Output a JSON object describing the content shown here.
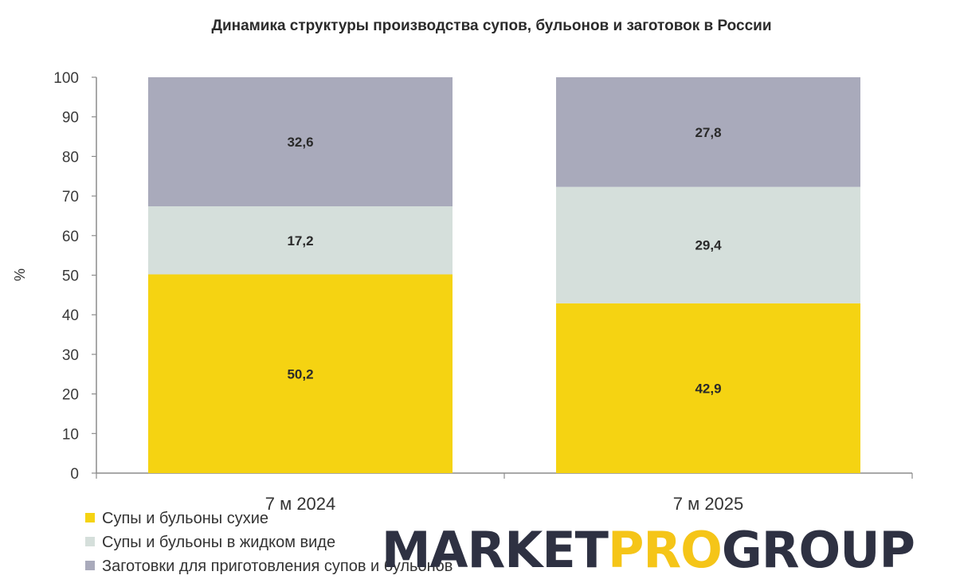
{
  "chart_data": {
    "type": "bar",
    "stacked": true,
    "title": "Динамика структуры производства супов, бульонов и заготовок в России",
    "xlabel": "",
    "ylabel": "%",
    "ylim": [
      0,
      100
    ],
    "yticks": [
      "0",
      "10",
      "20",
      "30",
      "40",
      "50",
      "60",
      "70",
      "80",
      "90",
      "100"
    ],
    "categories": [
      "7 м 2024",
      "7 м 2025"
    ],
    "grid": false,
    "legend_position": "bottom-left",
    "series": [
      {
        "name": "Супы и бульоны сухие",
        "values": [
          50.2,
          42.9
        ],
        "labels": [
          "50,2",
          "42,9"
        ],
        "color": "#f5d312"
      },
      {
        "name": "Супы и бульоны в жидком виде",
        "values": [
          17.2,
          29.4
        ],
        "labels": [
          "17,2",
          "29,4"
        ],
        "color": "#d5dfdb"
      },
      {
        "name": "Заготовки для приготовления супов и бульонов",
        "values": [
          32.6,
          27.8
        ],
        "labels": [
          "32,6",
          "27,8"
        ],
        "color": "#a9aabb"
      }
    ]
  },
  "logo": {
    "part1": "MARKET",
    "part2": "PRO",
    "part3": "GROUP",
    "color_dark": "#2e3142",
    "color_accent": "#f5c518"
  }
}
